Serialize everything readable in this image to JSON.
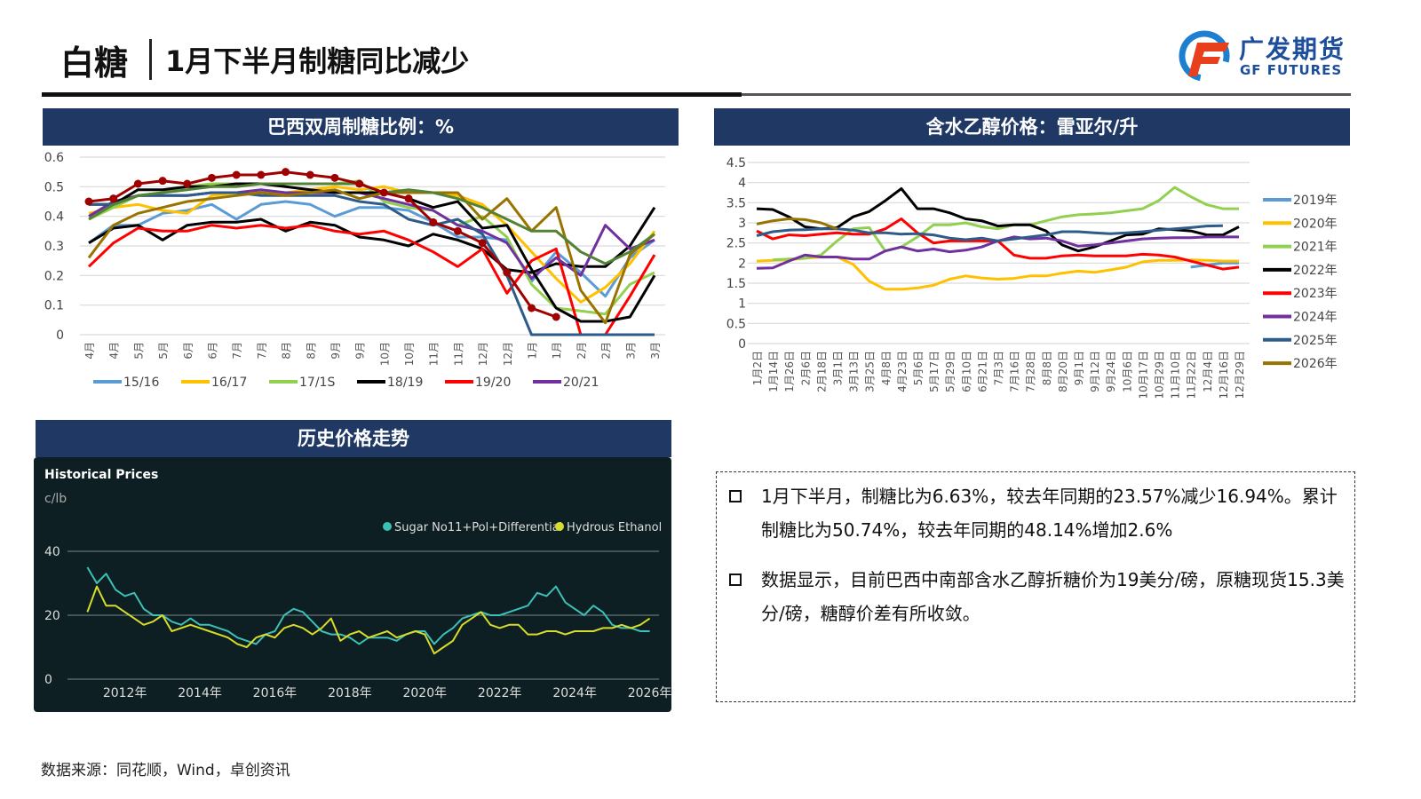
{
  "header": {
    "title": "白糖",
    "subtitle": "1月下半月制糖同比减少",
    "logo_cn": "广发期货",
    "logo_en": "GF FUTURES"
  },
  "panels": {
    "left_title": "巴西双周制糖比例：%",
    "right_title": "含水乙醇价格：雷亚尔/升",
    "bottom_title": "历史价格走势"
  },
  "text_box": {
    "bullets": [
      "1月下半月，制糖比为6.63%，较去年同期的23.57%减少16.94%。累计制糖比为50.74%，较去年同期的48.14%增加2.6%",
      "数据显示，目前巴西中南部含水乙醇折糖价为19美分/磅，原糖现货15.3美分/磅，糖醇价差有所收敛。"
    ]
  },
  "source": "数据来源：同花顺，Wind，卓创资讯",
  "colors": {
    "header_bg": "#1f3864",
    "dark_chart_bg": "#0d1f22"
  },
  "chart_data": [
    {
      "type": "line",
      "title": "",
      "ylim": [
        0,
        0.6
      ],
      "yticks": [
        "0",
        "0.1",
        "0.2",
        "0.3",
        "0.4",
        "0.5",
        "0.6"
      ],
      "grid": true,
      "legend": "bottom",
      "categories": [
        "4月",
        "4月",
        "5月",
        "5月",
        "6月",
        "6月",
        "7月",
        "7月",
        "8月",
        "8月",
        "9月",
        "9月",
        "10月",
        "10月",
        "11月",
        "11月",
        "12月",
        "12月",
        "1月",
        "1月",
        "2月",
        "2月",
        "3月",
        "3月"
      ],
      "series": [
        {
          "name": "15/16",
          "color": "#5b9bd5",
          "values": [
            0.31,
            0.37,
            0.37,
            0.41,
            0.42,
            0.44,
            0.39,
            0.44,
            0.45,
            0.44,
            0.4,
            0.43,
            0.43,
            0.42,
            0.38,
            0.33,
            0.33,
            0.32,
            0.18,
            0.28,
            0.21,
            0.13,
            0.26,
            0.32
          ]
        },
        {
          "name": "16/17",
          "color": "#ffc000",
          "values": [
            0.41,
            0.43,
            0.44,
            0.42,
            0.41,
            0.47,
            0.48,
            0.48,
            0.48,
            0.49,
            0.5,
            0.49,
            0.5,
            0.48,
            0.48,
            0.47,
            0.44,
            0.37,
            0.28,
            0.19,
            0.11,
            0.16,
            0.24,
            0.35
          ]
        },
        {
          "name": "17/1S",
          "color": "#92d050",
          "values": [
            0.39,
            0.43,
            0.47,
            0.48,
            0.5,
            0.51,
            0.51,
            0.51,
            0.51,
            0.51,
            0.51,
            0.52,
            0.45,
            0.43,
            0.42,
            0.37,
            0.4,
            0.33,
            0.17,
            0.09,
            0.08,
            0.07,
            0.17,
            0.21
          ]
        },
        {
          "name": "18/19",
          "color": "#000000",
          "values": [
            0.31,
            0.36,
            0.37,
            0.32,
            0.37,
            0.38,
            0.38,
            0.39,
            0.35,
            0.38,
            0.37,
            0.33,
            0.32,
            0.3,
            0.34,
            0.32,
            0.29,
            0.22,
            0.21,
            0.24,
            0.23,
            0.23,
            0.3,
            0.43
          ]
        },
        {
          "name": "19/20",
          "color": "#ff0000",
          "values": [
            0.23,
            0.31,
            0.36,
            0.35,
            0.35,
            0.37,
            0.36,
            0.37,
            0.36,
            0.37,
            0.35,
            0.34,
            0.35,
            0.32,
            0.28,
            0.23,
            0.29,
            0.14,
            0.25,
            0.29,
            0,
            0,
            0.13,
            0.27
          ]
        },
        {
          "name": "20/21",
          "color": "#7030a0",
          "values": [
            0.4,
            0.45,
            0.47,
            0.47,
            0.47,
            0.48,
            0.48,
            0.49,
            0.48,
            0.48,
            0.48,
            0.48,
            0.46,
            0.44,
            0.42,
            0.37,
            0.35,
            0.31,
            0.19,
            0.26,
            0.2,
            0.37,
            0.29,
            0.32
          ]
        },
        {
          "color": "#000000",
          "values": [
            0.44,
            0.44,
            0.49,
            0.49,
            0.5,
            0.5,
            0.51,
            0.51,
            0.5,
            0.49,
            0.48,
            0.48,
            0.48,
            0.46,
            0.43,
            0.45,
            0.36,
            0.37,
            0.22,
            0.09,
            0.045,
            0.045,
            0.06,
            0.2
          ]
        },
        {
          "color": "#2e5c8a",
          "values": [
            0.44,
            0.44,
            0.47,
            0.47,
            0.47,
            0.48,
            0.48,
            0.47,
            0.47,
            0.47,
            0.47,
            0.45,
            0.44,
            0.39,
            0.37,
            0.39,
            0.34,
            0.2,
            0,
            0,
            0,
            0,
            0,
            0
          ]
        },
        {
          "color": "#997300",
          "values": [
            0.26,
            0.37,
            0.41,
            0.43,
            0.45,
            0.46,
            0.47,
            0.48,
            0.47,
            0.48,
            0.49,
            0.46,
            0.48,
            0.48,
            0.48,
            0.48,
            0.39,
            0.46,
            0.35,
            0.43,
            0.15,
            0.04,
            0.27,
            0.34
          ]
        },
        {
          "color": "#548235",
          "values": [
            0.39,
            0.44,
            0.47,
            0.48,
            0.49,
            0.5,
            0.5,
            0.51,
            0.51,
            0.51,
            0.51,
            0.51,
            0.48,
            0.49,
            0.48,
            0.46,
            0.43,
            0.39,
            0.35,
            0.35,
            0.28,
            0.24,
            0.28,
            0.34
          ]
        },
        {
          "color": "#a00000",
          "markers": true,
          "values": [
            0.45,
            0.46,
            0.51,
            0.52,
            0.51,
            0.53,
            0.54,
            0.54,
            0.55,
            0.54,
            0.53,
            0.51,
            0.48,
            0.46,
            0.38,
            0.35,
            0.31,
            0.21,
            0.09,
            0.06,
            null,
            null,
            null,
            null
          ]
        }
      ]
    },
    {
      "type": "line",
      "title": "",
      "ylim": [
        0,
        4.5
      ],
      "yticks": [
        "0",
        "0.5",
        "1",
        "1.5",
        "2",
        "2.5",
        "3",
        "3.5",
        "4",
        "4.5"
      ],
      "grid": true,
      "legend": "right",
      "categories": [
        "1月2日",
        "1月14日",
        "1月26日",
        "2月6日",
        "2月18日",
        "3月1日",
        "3月13日",
        "3月25日",
        "4月8日",
        "4月23日",
        "5月6日",
        "5月17日",
        "5月29日",
        "6月10日",
        "6月21日",
        "7月3日",
        "7月16日",
        "7月28日",
        "8月8日",
        "8月20日",
        "9月1日",
        "9月12日",
        "9月24日",
        "10月6日",
        "10月17日",
        "10月29日",
        "11月10日",
        "11月22日",
        "12月4日",
        "12月16日",
        "12月29日"
      ],
      "series": [
        {
          "name": "2019年",
          "color": "#5b9bd5",
          "values": [
            null,
            null,
            null,
            null,
            null,
            null,
            null,
            null,
            null,
            null,
            null,
            null,
            null,
            null,
            null,
            null,
            null,
            null,
            null,
            null,
            null,
            null,
            null,
            null,
            null,
            null,
            null,
            1.9,
            1.95,
            2.0,
            2.0
          ]
        },
        {
          "name": "2020年",
          "color": "#ffc000",
          "values": [
            2.05,
            2.07,
            2.08,
            2.12,
            2.15,
            2.15,
            1.97,
            1.55,
            1.35,
            1.35,
            1.38,
            1.45,
            1.6,
            1.68,
            1.63,
            1.6,
            1.62,
            1.68,
            1.68,
            1.75,
            1.8,
            1.77,
            1.83,
            1.9,
            2.03,
            2.07,
            2.07,
            2.08,
            2.07,
            2.05,
            2.05
          ]
        },
        {
          "name": "2021年",
          "color": "#92d050",
          "values": [
            null,
            2.08,
            2.1,
            2.12,
            2.2,
            2.55,
            2.85,
            2.88,
            2.3,
            2.4,
            2.65,
            2.95,
            2.95,
            3.0,
            2.9,
            2.85,
            2.95,
            2.95,
            3.05,
            3.15,
            3.2,
            3.22,
            3.25,
            3.3,
            3.35,
            3.55,
            3.88,
            3.65,
            3.45,
            3.35,
            3.35
          ]
        },
        {
          "name": "2022年",
          "color": "#000000",
          "values": [
            3.35,
            3.33,
            3.15,
            2.9,
            2.85,
            2.88,
            3.15,
            3.28,
            3.55,
            3.85,
            3.35,
            3.35,
            3.25,
            3.1,
            3.05,
            2.92,
            2.95,
            2.95,
            2.8,
            2.45,
            2.3,
            2.4,
            2.55,
            2.7,
            2.72,
            2.85,
            2.83,
            2.8,
            2.7,
            2.7,
            2.9
          ]
        },
        {
          "name": "2023年",
          "color": "#ff0000",
          "values": [
            2.8,
            2.6,
            2.7,
            2.68,
            2.72,
            2.75,
            2.72,
            2.72,
            2.85,
            3.1,
            2.75,
            2.5,
            2.55,
            2.55,
            2.55,
            2.55,
            2.2,
            2.12,
            2.12,
            2.18,
            2.2,
            2.18,
            2.18,
            2.18,
            2.22,
            2.2,
            2.15,
            2.05,
            1.95,
            1.85,
            1.9
          ]
        },
        {
          "name": "2024年",
          "color": "#7030a0",
          "values": [
            1.87,
            1.88,
            2.05,
            2.2,
            2.15,
            2.15,
            2.1,
            2.1,
            2.3,
            2.4,
            2.3,
            2.35,
            2.28,
            2.32,
            2.4,
            2.55,
            2.65,
            2.6,
            2.62,
            2.55,
            2.42,
            2.45,
            2.5,
            2.55,
            2.6,
            2.62,
            2.63,
            2.63,
            2.65,
            2.65,
            2.65
          ]
        },
        {
          "name": "2025年",
          "color": "#2e5c8a",
          "values": [
            2.68,
            2.78,
            2.82,
            2.83,
            2.85,
            2.85,
            2.82,
            2.75,
            2.75,
            2.72,
            2.73,
            2.7,
            2.62,
            2.58,
            2.62,
            2.55,
            2.6,
            2.65,
            2.7,
            2.78,
            2.78,
            2.75,
            2.73,
            2.75,
            2.78,
            2.82,
            2.85,
            2.88,
            2.92,
            2.93,
            null
          ]
        },
        {
          "name": "2026年",
          "color": "#997300",
          "values": [
            2.97,
            3.05,
            3.1,
            3.08,
            3.0,
            2.85,
            null,
            null,
            null,
            null,
            null,
            null,
            null,
            null,
            null,
            null,
            null,
            null,
            null,
            null,
            null,
            null,
            null,
            null,
            null,
            null,
            null,
            null,
            null,
            null,
            null
          ]
        }
      ]
    },
    {
      "type": "line",
      "title": "Historical Prices",
      "ylabel": "c/lb",
      "ylim": [
        0,
        40
      ],
      "yticks": [
        "0",
        "20",
        "40"
      ],
      "xlim": [
        2010.8,
        2026.2
      ],
      "xticks": [
        "2012年",
        "2014年",
        "2016年",
        "2018年",
        "2020年",
        "2022年",
        "2024年",
        "2026年"
      ],
      "grid": true,
      "legend": "top-right",
      "x": [
        2011,
        2011.25,
        2011.5,
        2011.75,
        2012,
        2012.25,
        2012.5,
        2012.75,
        2013,
        2013.25,
        2013.5,
        2013.75,
        2014,
        2014.25,
        2014.5,
        2014.75,
        2015,
        2015.25,
        2015.5,
        2015.75,
        2016,
        2016.25,
        2016.5,
        2016.75,
        2017,
        2017.25,
        2017.5,
        2017.75,
        2018,
        2018.25,
        2018.5,
        2018.75,
        2019,
        2019.25,
        2019.5,
        2019.75,
        2020,
        2020.25,
        2020.5,
        2020.75,
        2021,
        2021.25,
        2021.5,
        2021.75,
        2022,
        2022.25,
        2022.5,
        2022.75,
        2023,
        2023.25,
        2023.5,
        2023.75,
        2024,
        2024.25,
        2024.5,
        2024.75,
        2025,
        2025.25,
        2025.5,
        2025.75,
        2026
      ],
      "series": [
        {
          "name": "Sugar No11+Pol+Differential",
          "color": "#3cc0b8",
          "values": [
            35,
            30,
            33,
            28,
            26,
            27,
            22,
            20,
            20,
            18,
            17,
            19,
            17,
            17,
            16,
            15,
            13,
            12,
            11,
            14,
            15,
            20,
            22,
            21,
            18,
            15,
            14,
            14,
            13,
            11,
            13,
            13,
            13,
            12,
            14,
            15,
            15,
            11,
            14,
            16,
            19,
            20,
            21,
            20,
            20,
            21,
            22,
            23,
            27,
            26,
            29,
            24,
            22,
            20,
            23,
            21,
            17,
            16,
            16,
            15,
            15
          ]
        },
        {
          "name": "Hydrous Ethanol",
          "color": "#d8dc2a",
          "values": [
            21,
            29,
            23,
            23,
            21,
            19,
            17,
            18,
            20,
            15,
            16,
            17,
            16,
            15,
            14,
            13,
            11,
            10,
            13,
            14,
            13,
            16,
            17,
            16,
            14,
            16,
            19,
            12,
            14,
            15,
            13,
            14,
            15,
            13,
            14,
            15,
            14,
            8,
            10,
            12,
            17,
            19,
            21,
            17,
            16,
            17,
            17,
            14,
            14,
            15,
            15,
            14,
            15,
            15,
            15,
            16,
            16,
            17,
            16,
            17,
            19
          ]
        }
      ]
    }
  ]
}
